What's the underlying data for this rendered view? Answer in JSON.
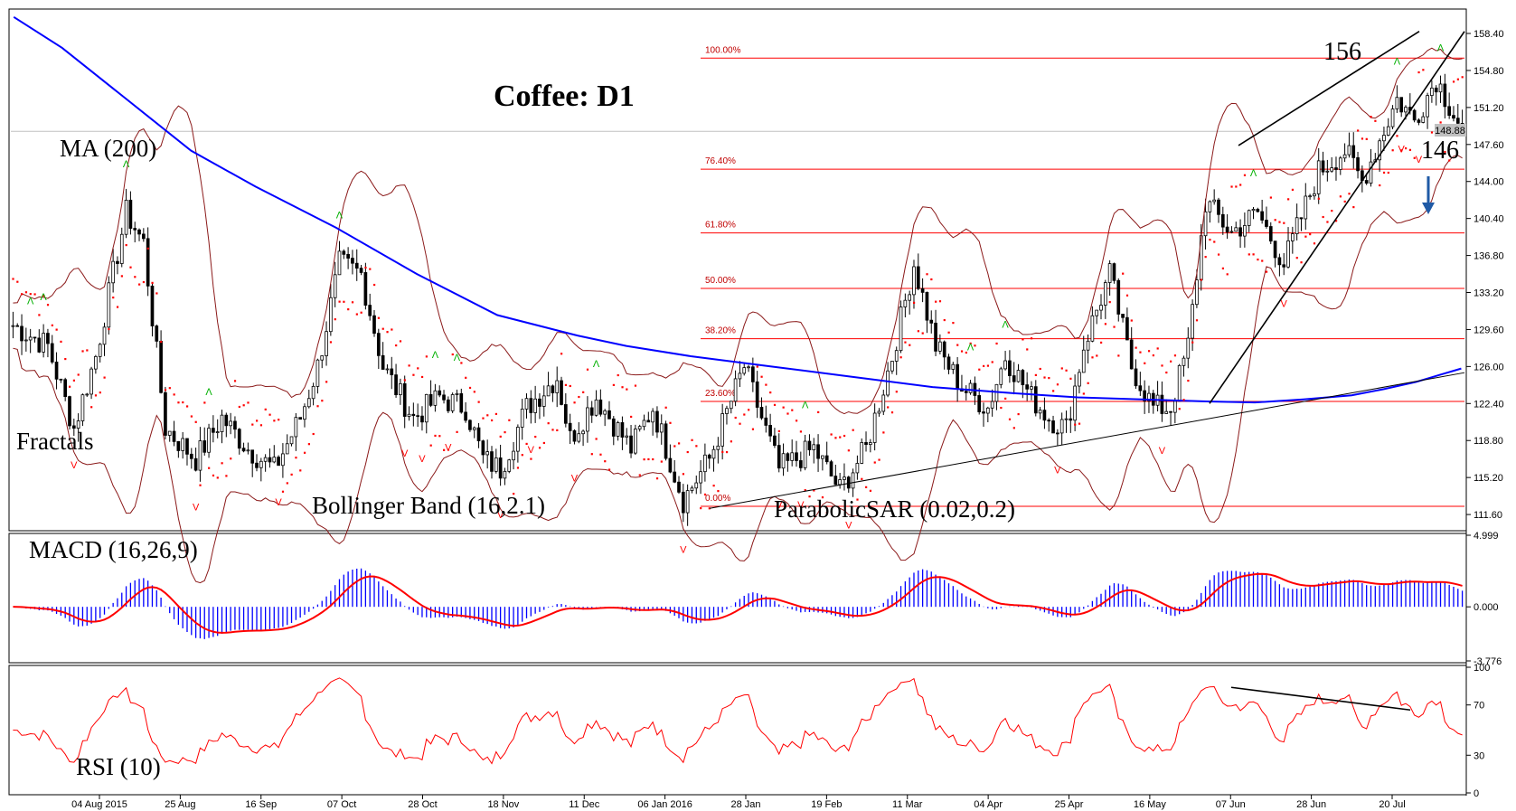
{
  "chart_data": {
    "type": "candlestick",
    "title": "Coffee: D1",
    "price_axis": {
      "ticks": [
        "158.40",
        "154.80",
        "151.20",
        "147.60",
        "144.00",
        "140.40",
        "136.80",
        "133.20",
        "129.60",
        "126.00",
        "122.40",
        "118.80",
        "115.20",
        "111.60"
      ],
      "current_price": "148.88",
      "range": [
        110.2,
        160.6
      ]
    },
    "time_axis": {
      "labels": [
        "04 Aug 2015",
        "25 Aug",
        "16 Sep",
        "07 Oct",
        "28 Oct",
        "18 Nov",
        "11 Dec",
        "06 Jan 2016",
        "28 Jan",
        "19 Feb",
        "11 Mar",
        "04 Apr",
        "25 Apr",
        "16 May",
        "07 Jun",
        "28 Jun",
        "20 Jul"
      ]
    },
    "fibonacci_levels": [
      {
        "label": "100.00%",
        "price": 156.0
      },
      {
        "label": "76.40%",
        "price": 145.2
      },
      {
        "label": "61.80%",
        "price": 139.0
      },
      {
        "label": "50.00%",
        "price": 133.6
      },
      {
        "label": "38.20%",
        "price": 128.7
      },
      {
        "label": "23.60%",
        "price": 122.6
      },
      {
        "label": "0.00%",
        "price": 112.4
      }
    ],
    "annotations": {
      "ma": "MA (200)",
      "fractals": "Fractals",
      "bollinger": "Bollinger Band (16,2.1)",
      "parabolic": "ParabolicSAR (0.02,0.2)",
      "macd": "MACD (16,26,9)",
      "rsi": "RSI (10)",
      "level_high": "156",
      "level_low": "146"
    },
    "macd_axis": {
      "ticks": [
        "4.999",
        "0.000",
        "-3.776"
      ],
      "range": [
        -3.776,
        4.999
      ]
    },
    "rsi_axis": {
      "ticks": [
        "100",
        "70",
        "30",
        "0"
      ],
      "range": [
        0,
        100
      ]
    },
    "ma200_path": [
      [
        0,
        160.0
      ],
      [
        30,
        157.0
      ],
      [
        70,
        152.0
      ],
      [
        110,
        147.0
      ],
      [
        150,
        143.5
      ],
      [
        200,
        139.5
      ],
      [
        250,
        135.0
      ],
      [
        300,
        131.0
      ],
      [
        350,
        129.0
      ],
      [
        380,
        128.0
      ],
      [
        420,
        127.0
      ],
      [
        470,
        126.0
      ],
      [
        520,
        125.0
      ],
      [
        570,
        124.0
      ],
      [
        620,
        123.4
      ],
      [
        660,
        123.0
      ],
      [
        700,
        122.8
      ],
      [
        740,
        122.6
      ],
      [
        770,
        122.5
      ],
      [
        800,
        122.8
      ],
      [
        830,
        123.2
      ],
      [
        850,
        123.8
      ],
      [
        870,
        124.5
      ],
      [
        885,
        125.2
      ],
      [
        898,
        125.8
      ]
    ]
  },
  "colors": {
    "ma": "#0000ff",
    "bollinger": "#8b1a1a",
    "fib": "#ff0000",
    "sar": "#ff0000",
    "fractal_up": "#00b000",
    "fractal_down": "#ff0000",
    "macd_hist": "#0000ff",
    "macd_signal": "#ff0000",
    "rsi": "#ff0000",
    "arrow": "#1f5aa6"
  }
}
